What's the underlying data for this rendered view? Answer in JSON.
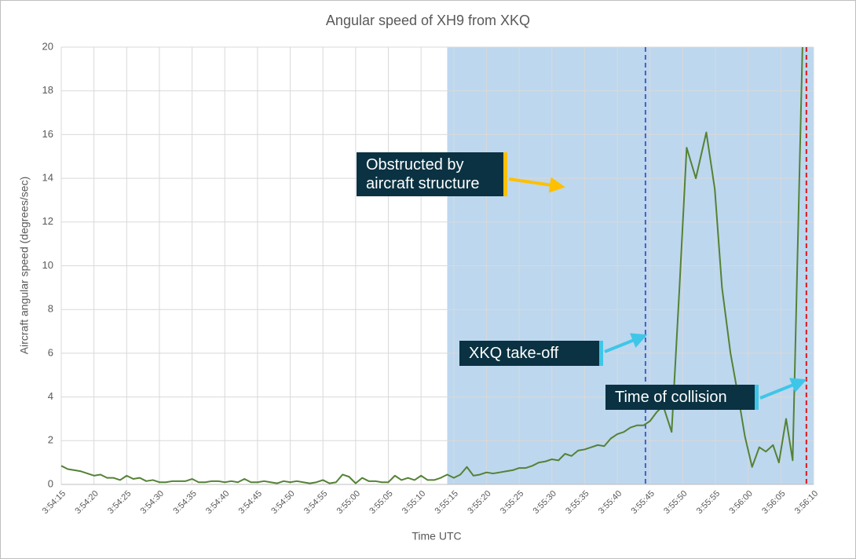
{
  "chart_data": {
    "type": "line",
    "title": "Angular speed of XH9 from XKQ",
    "xlabel": "Time UTC",
    "ylabel": "Aircraft angular speed (degrees/sec)",
    "xlim": [
      14055,
      14170
    ],
    "ylim": [
      0,
      20
    ],
    "yticks": [
      0,
      2,
      4,
      6,
      8,
      10,
      12,
      14,
      16,
      18,
      20
    ],
    "grid": true,
    "xticks": [
      {
        "value": 14055,
        "label": "3:54:15"
      },
      {
        "value": 14060,
        "label": "3:54:20"
      },
      {
        "value": 14065,
        "label": "3:54:25"
      },
      {
        "value": 14070,
        "label": "3:54:30"
      },
      {
        "value": 14075,
        "label": "3:54:35"
      },
      {
        "value": 14080,
        "label": "3:54:40"
      },
      {
        "value": 14085,
        "label": "3:54:45"
      },
      {
        "value": 14090,
        "label": "3:54:50"
      },
      {
        "value": 14095,
        "label": "3:54:55"
      },
      {
        "value": 14100,
        "label": "3:55:00"
      },
      {
        "value": 14105,
        "label": "3:55:05"
      },
      {
        "value": 14110,
        "label": "3:55:10"
      },
      {
        "value": 14115,
        "label": "3:55:15"
      },
      {
        "value": 14120,
        "label": "3:55:20"
      },
      {
        "value": 14125,
        "label": "3:55:25"
      },
      {
        "value": 14130,
        "label": "3:55:30"
      },
      {
        "value": 14135,
        "label": "3:55:35"
      },
      {
        "value": 14140,
        "label": "3:55:40"
      },
      {
        "value": 14145,
        "label": "3:55:45"
      },
      {
        "value": 14150,
        "label": "3:55:50"
      },
      {
        "value": 14155,
        "label": "3:55:55"
      },
      {
        "value": 14160,
        "label": "3:56:00"
      },
      {
        "value": 14165,
        "label": "3:56:05"
      },
      {
        "value": 14170,
        "label": "3:56:10"
      }
    ],
    "shaded_region": {
      "x": [
        14114,
        14170
      ],
      "color": "#bdd7ee"
    },
    "vlines": [
      {
        "x": 14144.3,
        "color": "#4a5fc1"
      },
      {
        "x": 14168.9,
        "color": "#e0161c"
      }
    ],
    "annotations": [
      {
        "text": "Obstructed by aircraft structure",
        "color": "#ffc000"
      },
      {
        "text": "XKQ take-off",
        "color": "#3ec6e8"
      },
      {
        "text": "Time of collision",
        "color": "#3ec6e8"
      }
    ],
    "series": [
      {
        "name": "Angular speed",
        "color": "#548235",
        "x": [
          14055,
          14056,
          14057,
          14058,
          14059,
          14060,
          14061,
          14062,
          14063,
          14064,
          14065,
          14066,
          14067,
          14068,
          14069,
          14070,
          14071,
          14072,
          14073,
          14074,
          14075,
          14076,
          14077,
          14078,
          14079,
          14080,
          14081,
          14082,
          14083,
          14084,
          14085,
          14086,
          14087,
          14088,
          14089,
          14090,
          14091,
          14092,
          14093,
          14094,
          14095,
          14096,
          14097,
          14098,
          14099,
          14100,
          14101,
          14102,
          14103,
          14104,
          14105,
          14106,
          14107,
          14108,
          14109,
          14110,
          14111,
          14112,
          14113,
          14114,
          14115,
          14116,
          14117,
          14118,
          14119,
          14120,
          14121,
          14122,
          14123,
          14124,
          14125,
          14126,
          14127,
          14128,
          14129,
          14130,
          14131,
          14132,
          14133,
          14134,
          14135,
          14136,
          14137,
          14138,
          14139,
          14140,
          14141,
          14142,
          14143,
          14144,
          14145,
          14146,
          14147,
          14148.3,
          14149.5,
          14150.6,
          14152,
          14153.6,
          14154.9,
          14156,
          14157.3,
          14158.5,
          14159.5,
          14160.6,
          14161.7,
          14162.7,
          14163.8,
          14164.7,
          14165.8,
          14166.8,
          14168.3
        ],
        "values": [
          0.85,
          0.7,
          0.65,
          0.6,
          0.5,
          0.4,
          0.45,
          0.3,
          0.3,
          0.2,
          0.4,
          0.25,
          0.3,
          0.15,
          0.2,
          0.1,
          0.1,
          0.15,
          0.15,
          0.15,
          0.25,
          0.1,
          0.1,
          0.15,
          0.15,
          0.1,
          0.15,
          0.1,
          0.25,
          0.1,
          0.1,
          0.15,
          0.1,
          0.05,
          0.15,
          0.1,
          0.15,
          0.1,
          0.05,
          0.1,
          0.2,
          0.05,
          0.1,
          0.45,
          0.35,
          0.05,
          0.3,
          0.15,
          0.15,
          0.1,
          0.1,
          0.4,
          0.2,
          0.3,
          0.2,
          0.4,
          0.2,
          0.2,
          0.3,
          0.45,
          0.3,
          0.45,
          0.8,
          0.4,
          0.45,
          0.55,
          0.5,
          0.55,
          0.6,
          0.65,
          0.75,
          0.75,
          0.85,
          1.0,
          1.05,
          1.15,
          1.1,
          1.4,
          1.3,
          1.55,
          1.6,
          1.7,
          1.8,
          1.75,
          2.1,
          2.3,
          2.4,
          2.6,
          2.7,
          2.7,
          2.9,
          3.3,
          3.6,
          2.4,
          9,
          15.4,
          14,
          16.1,
          13.5,
          9,
          6,
          4,
          2.2,
          0.8,
          1.7,
          1.5,
          1.8,
          1.0,
          3.0,
          1.1,
          20
        ]
      }
    ]
  }
}
